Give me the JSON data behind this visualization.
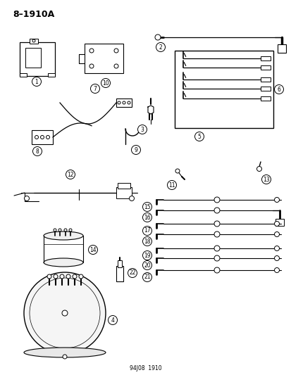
{
  "title": "8–1910A",
  "footer": "94J08  1910",
  "bg_color": "#ffffff",
  "fg_color": "#000000",
  "fig_width": 4.14,
  "fig_height": 5.33,
  "dpi": 100
}
